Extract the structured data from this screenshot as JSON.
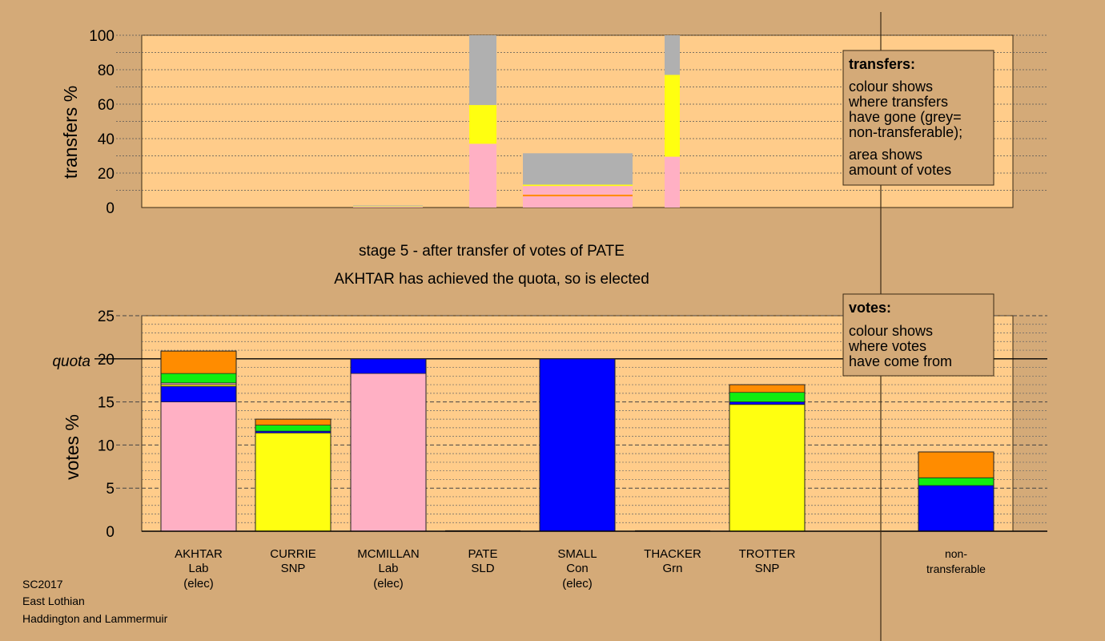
{
  "footer": {
    "line1": "SC2017",
    "line2": "East Lothian",
    "line3": "Haddington and Lammermuir"
  },
  "stage_text": "stage 5 - after transfer of votes of PATE",
  "elected_text": "AKHTAR has achieved the quota, so is elected",
  "legend_transfers": {
    "title": "transfers:",
    "lines": [
      "colour shows",
      "where transfers",
      "have gone (grey=",
      "non-transferable);"
    ],
    "lines2": [
      "area shows",
      "amount of votes"
    ]
  },
  "legend_votes": {
    "title": "votes:",
    "lines": [
      "colour shows",
      "where votes",
      "have come from"
    ]
  },
  "colors": {
    "background": "#d4aa78",
    "plot_bg": "#ffcc8a",
    "Lab": "#ffb0c4",
    "SNP": "#ffff10",
    "Con": "#0000ff",
    "Grn": "#10ee10",
    "SLD": "#ff8c00",
    "nontransferable": "#b0b0b0"
  },
  "chart_data": [
    {
      "type": "bar",
      "name": "transfers",
      "ylabel": "transfers %",
      "ylim": [
        0,
        100
      ],
      "yticks": [
        0,
        20,
        40,
        60,
        80,
        100
      ],
      "stacked_note": "column width proportional to votes transferred",
      "columns": [
        {
          "from": "MCMILLAN",
          "segments": [
            {
              "to": "Lab",
              "value": 0.5
            },
            {
              "to": "SNP",
              "value": 0.2
            },
            {
              "to": "nontransferable",
              "value": 0.5
            }
          ]
        },
        {
          "from": "PATE",
          "segments": [
            {
              "to": "Lab",
              "value": 37
            },
            {
              "to": "SNP",
              "value": 22.5
            },
            {
              "to": "nontransferable",
              "value": 40.5
            }
          ]
        },
        {
          "from": "SMALL",
          "segments": [
            {
              "to": "Lab",
              "value": 6.5
            },
            {
              "to": "SLD",
              "value": 1
            },
            {
              "to": "Lab",
              "value": 5
            },
            {
              "to": "SNP",
              "value": 0.8
            },
            {
              "to": "nontransferable",
              "value": 18.2
            }
          ]
        },
        {
          "from": "THACKER",
          "segments": [
            {
              "to": "Lab",
              "value": 29.5
            },
            {
              "to": "SNP",
              "value": 47.5
            },
            {
              "to": "nontransferable",
              "value": 23
            }
          ]
        }
      ]
    },
    {
      "type": "bar",
      "name": "votes",
      "ylabel": "votes %",
      "ylim": [
        0,
        25
      ],
      "yticks": [
        0,
        5,
        10,
        15,
        20,
        25
      ],
      "quota": 20,
      "quota_label": "quota",
      "candidates": [
        {
          "name": "AKHTAR",
          "party": "Lab",
          "status": "(elec)",
          "segments": [
            {
              "from": "Lab",
              "value": 15.0
            },
            {
              "from": "Con",
              "value": 1.8
            },
            {
              "from": "SNP",
              "value": 0.2
            },
            {
              "from": "Lab",
              "value": 0.2
            },
            {
              "from": "Grn",
              "value": 1.1
            },
            {
              "from": "SLD",
              "value": 2.6
            }
          ]
        },
        {
          "name": "CURRIE",
          "party": "SNP",
          "status": "",
          "segments": [
            {
              "from": "SNP",
              "value": 11.4
            },
            {
              "from": "Con",
              "value": 0.2
            },
            {
              "from": "Grn",
              "value": 0.7
            },
            {
              "from": "SLD",
              "value": 0.7
            }
          ]
        },
        {
          "name": "MCMILLAN",
          "party": "Lab",
          "status": "(elec)",
          "segments": [
            {
              "from": "Lab",
              "value": 18.3
            },
            {
              "from": "Con",
              "value": 1.7
            }
          ]
        },
        {
          "name": "PATE",
          "party": "SLD",
          "status": "",
          "segments": []
        },
        {
          "name": "SMALL",
          "party": "Con",
          "status": "(elec)",
          "segments": [
            {
              "from": "Con",
              "value": 20.0
            }
          ]
        },
        {
          "name": "THACKER",
          "party": "Grn",
          "status": "",
          "segments": []
        },
        {
          "name": "TROTTER",
          "party": "SNP",
          "status": "",
          "segments": [
            {
              "from": "SNP",
              "value": 14.7
            },
            {
              "from": "Con",
              "value": 0.3
            },
            {
              "from": "Grn",
              "value": 1.1
            },
            {
              "from": "SLD",
              "value": 0.9
            }
          ]
        },
        {
          "name": "non-",
          "party": "transferable",
          "status": "",
          "segments": [
            {
              "from": "Con",
              "value": 5.3
            },
            {
              "from": "Grn",
              "value": 0.9
            },
            {
              "from": "SLD",
              "value": 3.0
            }
          ]
        }
      ]
    }
  ]
}
